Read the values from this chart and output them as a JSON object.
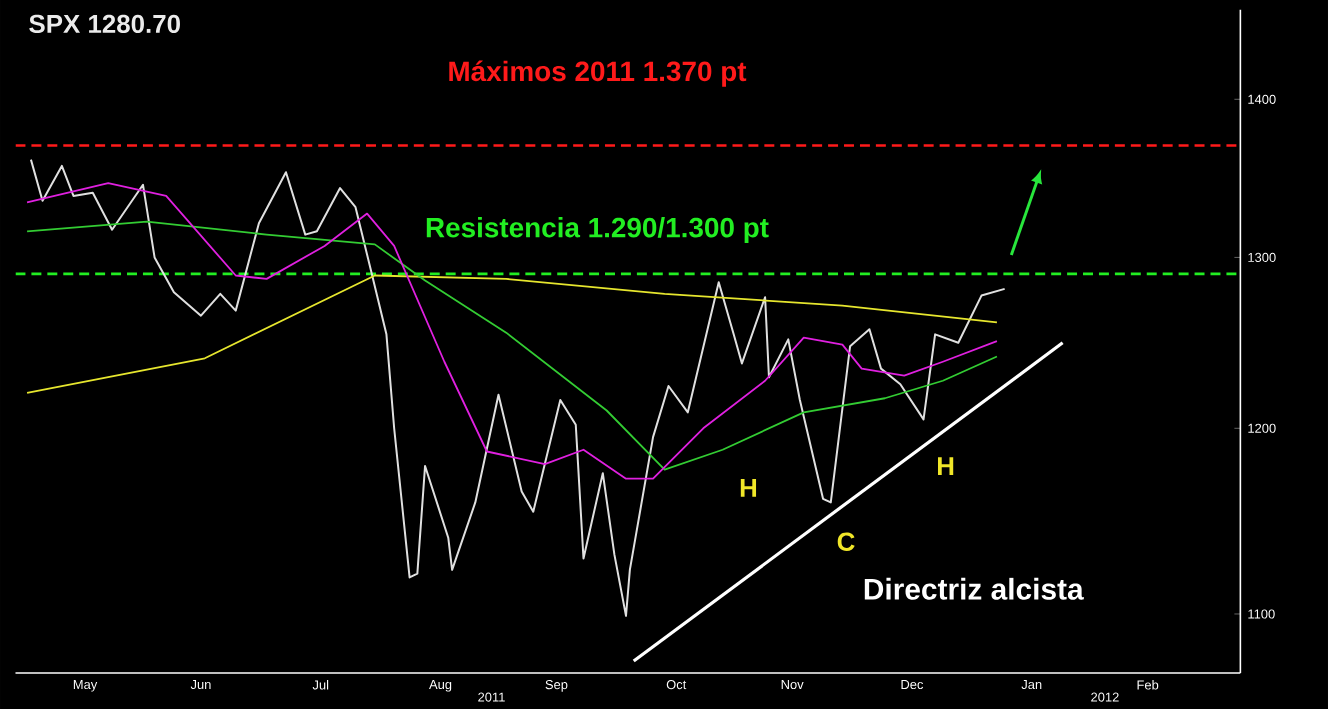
{
  "chart_data": {
    "type": "line",
    "title": "SPX 1280.70",
    "log": "y",
    "xlim": [
      "2011-04-28",
      "2012-03-10"
    ],
    "ylim": [
      1070,
      1460
    ],
    "xticks": [
      {
        "value": "2011-05-16",
        "label": "May"
      },
      {
        "value": "2011-06-15",
        "label": "Jun"
      },
      {
        "value": "2011-07-16",
        "label": "Jul"
      },
      {
        "value": "2011-08-16",
        "label": "Aug"
      },
      {
        "value": "2011-09-15",
        "label": "Sep"
      },
      {
        "value": "2011-10-16",
        "label": "Oct"
      },
      {
        "value": "2011-11-15",
        "label": "Nov"
      },
      {
        "value": "2011-12-16",
        "label": "Dec"
      },
      {
        "value": "2012-01-16",
        "label": "Jan"
      },
      {
        "value": "2012-02-15",
        "label": "Feb"
      }
    ],
    "yticks": [
      1100,
      1200,
      1300,
      1400
    ],
    "series": [
      {
        "color": "#e0e0e0",
        "x": [
          "2011-05-02",
          "2011-05-05",
          "2011-05-10",
          "2011-05-13",
          "2011-05-18",
          "2011-05-23",
          "2011-05-27",
          "2011-05-31",
          "2011-06-03",
          "2011-06-08",
          "2011-06-15",
          "2011-06-20",
          "2011-06-24",
          "2011-06-30",
          "2011-07-07",
          "2011-07-12",
          "2011-07-15",
          "2011-07-21",
          "2011-07-25",
          "2011-07-29",
          "2011-08-02",
          "2011-08-04",
          "2011-08-08",
          "2011-08-10",
          "2011-08-12",
          "2011-08-18",
          "2011-08-19",
          "2011-08-25",
          "2011-08-31",
          "2011-09-06",
          "2011-09-09",
          "2011-09-16",
          "2011-09-20",
          "2011-09-22",
          "2011-09-27",
          "2011-09-30",
          "2011-10-03",
          "2011-10-04",
          "2011-10-10",
          "2011-10-14",
          "2011-10-19",
          "2011-10-27",
          "2011-10-31",
          "2011-11-02",
          "2011-11-08",
          "2011-11-09",
          "2011-11-14",
          "2011-11-17",
          "2011-11-23",
          "2011-11-25",
          "2011-11-30",
          "2011-12-05",
          "2011-12-08",
          "2011-12-13",
          "2011-12-19",
          "2011-12-22",
          "2011-12-28",
          "2012-01-03",
          "2012-01-09"
        ],
        "values": [
          1361,
          1335,
          1357,
          1338,
          1340,
          1317,
          1331,
          1345,
          1300,
          1279,
          1265,
          1278,
          1268,
          1321,
          1353,
          1314,
          1316,
          1343,
          1331,
          1292,
          1254,
          1200,
          1119,
          1121,
          1179,
          1140,
          1123,
          1159,
          1219,
          1165,
          1154,
          1216,
          1202,
          1129,
          1175,
          1131,
          1099,
          1123,
          1195,
          1224,
          1209,
          1285,
          1253,
          1237,
          1276,
          1229,
          1251,
          1216,
          1161,
          1159,
          1247,
          1257,
          1234,
          1225,
          1205,
          1254,
          1249,
          1277,
          1281
        ]
      },
      {
        "color": "#e6e62e",
        "x": [
          "2011-05-01",
          "2011-06-16",
          "2011-07-30",
          "2011-09-02",
          "2011-10-13",
          "2011-11-28",
          "2012-01-07"
        ],
        "values": [
          1220,
          1240,
          1289,
          1287,
          1278,
          1271,
          1261
        ]
      },
      {
        "color": "#33cc33",
        "x": [
          "2011-05-01",
          "2011-06-01",
          "2011-07-02",
          "2011-07-30",
          "2011-08-12",
          "2011-09-02",
          "2011-09-28",
          "2011-10-13",
          "2011-10-28",
          "2011-11-18",
          "2011-12-09",
          "2011-12-24",
          "2012-01-07"
        ],
        "values": [
          1316,
          1322,
          1314,
          1308,
          1286,
          1255,
          1210,
          1177,
          1188,
          1209,
          1217,
          1227,
          1241
        ]
      },
      {
        "color": "#e020e0",
        "x": [
          "2011-05-01",
          "2011-05-22",
          "2011-06-06",
          "2011-06-24",
          "2011-07-02",
          "2011-07-17",
          "2011-07-28",
          "2011-08-04",
          "2011-08-17",
          "2011-08-28",
          "2011-09-12",
          "2011-09-22",
          "2011-10-03",
          "2011-10-10",
          "2011-10-23",
          "2011-11-08",
          "2011-11-18",
          "2011-11-28",
          "2011-12-03",
          "2011-12-14",
          "2011-12-24",
          "2012-01-07"
        ],
        "values": [
          1334,
          1346,
          1338,
          1289,
          1287,
          1307,
          1327,
          1307,
          1238,
          1187,
          1180,
          1188,
          1172,
          1172,
          1200,
          1227,
          1252,
          1248,
          1234,
          1230,
          1238,
          1250
        ]
      },
      {
        "name": "Directriz alcista",
        "color": "#ffffff",
        "x": [
          "2011-10-05",
          "2012-01-24"
        ],
        "values": [
          1076,
          1249
        ]
      }
    ],
    "ref_lines": [
      {
        "axis": "y",
        "value": 1370,
        "label": "Máximos 2011 1.370 pt",
        "color": "#ff1a1a",
        "line_style": "dashed"
      },
      {
        "axis": "y",
        "value": 1290,
        "label": "Resistencia 1.290/1.300 pt",
        "color": "#22ee22",
        "line_style": "dashed"
      }
    ],
    "annotations": [
      "H",
      "C",
      "H",
      "2011",
      "2012"
    ]
  }
}
